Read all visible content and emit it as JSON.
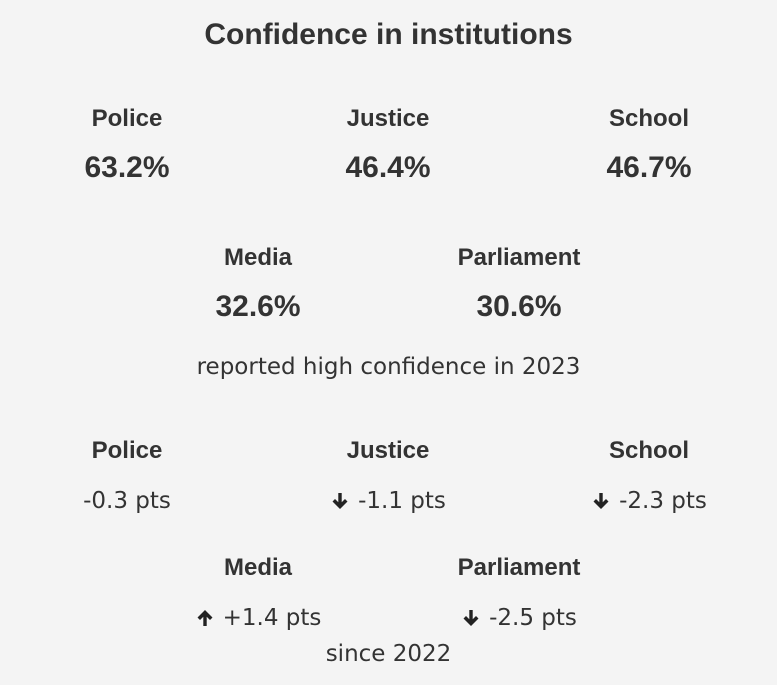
{
  "title": "Confidence in institutions",
  "levels": [
    {
      "label": "Police",
      "value": "63.2%"
    },
    {
      "label": "Justice",
      "value": "46.4%"
    },
    {
      "label": "School",
      "value": "46.7%"
    },
    {
      "label": "Media",
      "value": "32.6%"
    },
    {
      "label": "Parliament",
      "value": "30.6%"
    }
  ],
  "levels_note": "reported high confidence in 2023",
  "changes": [
    {
      "label": "Police",
      "change": "-0.3 pts",
      "arrow": "none"
    },
    {
      "label": "Justice",
      "change": "-1.1 pts",
      "arrow": "down-arrow-icon"
    },
    {
      "label": "School",
      "change": "-2.3 pts",
      "arrow": "down-arrow-icon"
    },
    {
      "label": "Media",
      "change": "+1.4 pts",
      "arrow": "up-arrow-icon"
    },
    {
      "label": "Parliament",
      "change": "-2.5 pts",
      "arrow": "down-arrow-icon"
    }
  ],
  "changes_note": "since 2022"
}
